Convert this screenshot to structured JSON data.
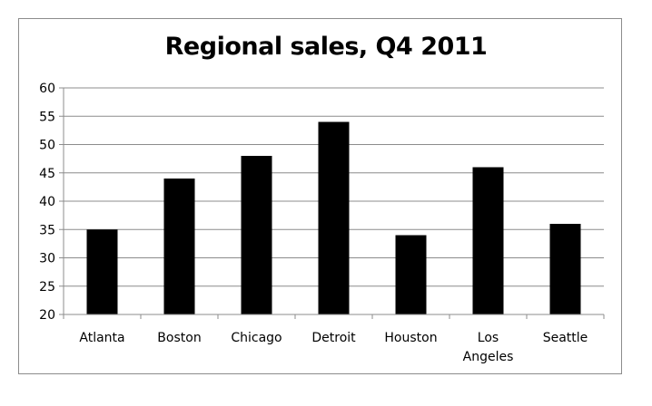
{
  "chart_data": {
    "type": "bar",
    "title": "Regional sales, Q4 2011",
    "xlabel": "",
    "ylabel": "",
    "categories": [
      "Atlanta",
      "Boston",
      "Chicago",
      "Detroit",
      "Houston",
      "Los Angeles",
      "Seattle"
    ],
    "category_lines": [
      [
        "Atlanta"
      ],
      [
        "Boston"
      ],
      [
        "Chicago"
      ],
      [
        "Detroit"
      ],
      [
        "Houston"
      ],
      [
        "Los",
        "Angeles"
      ],
      [
        "Seattle"
      ]
    ],
    "values": [
      35,
      44,
      48,
      54,
      34,
      46,
      36
    ],
    "ylim": [
      20,
      60
    ],
    "yticks": [
      20,
      25,
      30,
      35,
      40,
      45,
      50,
      55,
      60
    ],
    "grid": true,
    "legend": "none",
    "bar_color": "#000000",
    "grid_color": "#8c8c8c"
  }
}
